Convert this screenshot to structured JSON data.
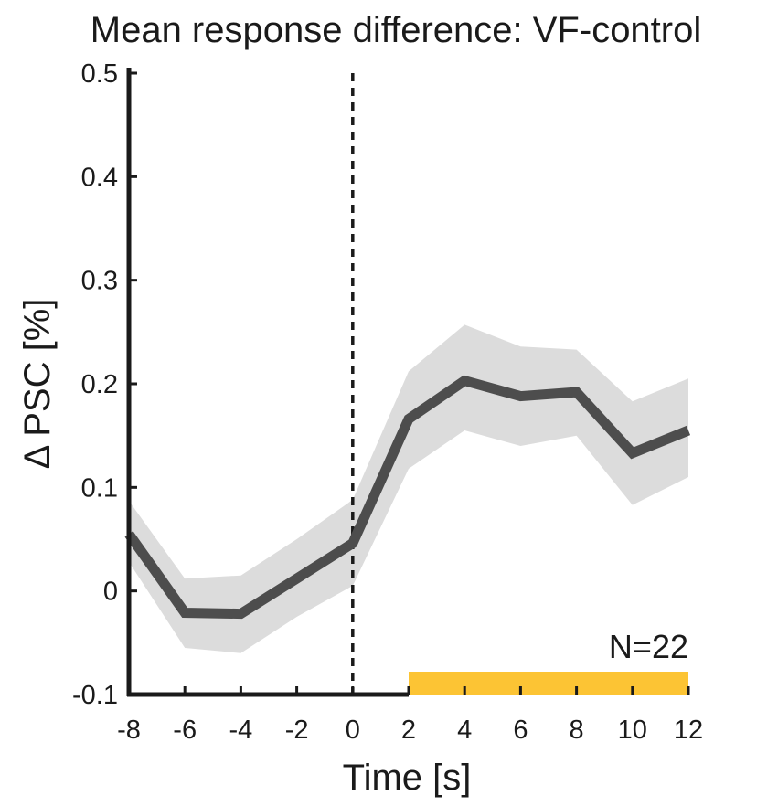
{
  "chart_data": {
    "type": "line",
    "title": "Mean response difference: VF-control",
    "xlabel": "Time [s]",
    "ylabel": "Δ PSC [%]",
    "xlim": [
      -8,
      12
    ],
    "ylim": [
      -0.1,
      0.5
    ],
    "x_ticks": [
      -8,
      -6,
      -4,
      -2,
      0,
      2,
      4,
      6,
      8,
      10,
      12
    ],
    "x_tick_labels": [
      "-8",
      "-6",
      "-4",
      "-2",
      "0",
      "2",
      "4",
      "6",
      "8",
      "10",
      "12"
    ],
    "y_ticks": [
      -0.1,
      0,
      0.1,
      0.2,
      0.3,
      0.4,
      0.5
    ],
    "y_tick_labels": [
      "-0.1",
      "0",
      "0.1",
      "0.2",
      "0.3",
      "0.4",
      "0.5"
    ],
    "grid": false,
    "series": [
      {
        "name": "mean",
        "x": [
          -8,
          -6,
          -4,
          -2,
          0,
          2,
          4,
          6,
          8,
          10,
          12
        ],
        "values": [
          0.055,
          -0.021,
          -0.022,
          0.012,
          0.046,
          0.166,
          0.203,
          0.188,
          0.192,
          0.133,
          0.155
        ],
        "lower": [
          0.028,
          -0.055,
          -0.06,
          -0.025,
          0.005,
          0.118,
          0.155,
          0.14,
          0.15,
          0.083,
          0.11
        ],
        "upper": [
          0.087,
          0.012,
          0.015,
          0.05,
          0.088,
          0.212,
          0.257,
          0.236,
          0.233,
          0.183,
          0.205
        ],
        "color": "#4d4d4d",
        "band_color": "#dcdcdc"
      }
    ],
    "vline": {
      "x": 0,
      "style": "dashed",
      "color": "#1a1a1a"
    },
    "significance_bar": {
      "x_start": 2,
      "x_end": 12,
      "color": "#fcc434"
    },
    "annotation": "N=22"
  }
}
